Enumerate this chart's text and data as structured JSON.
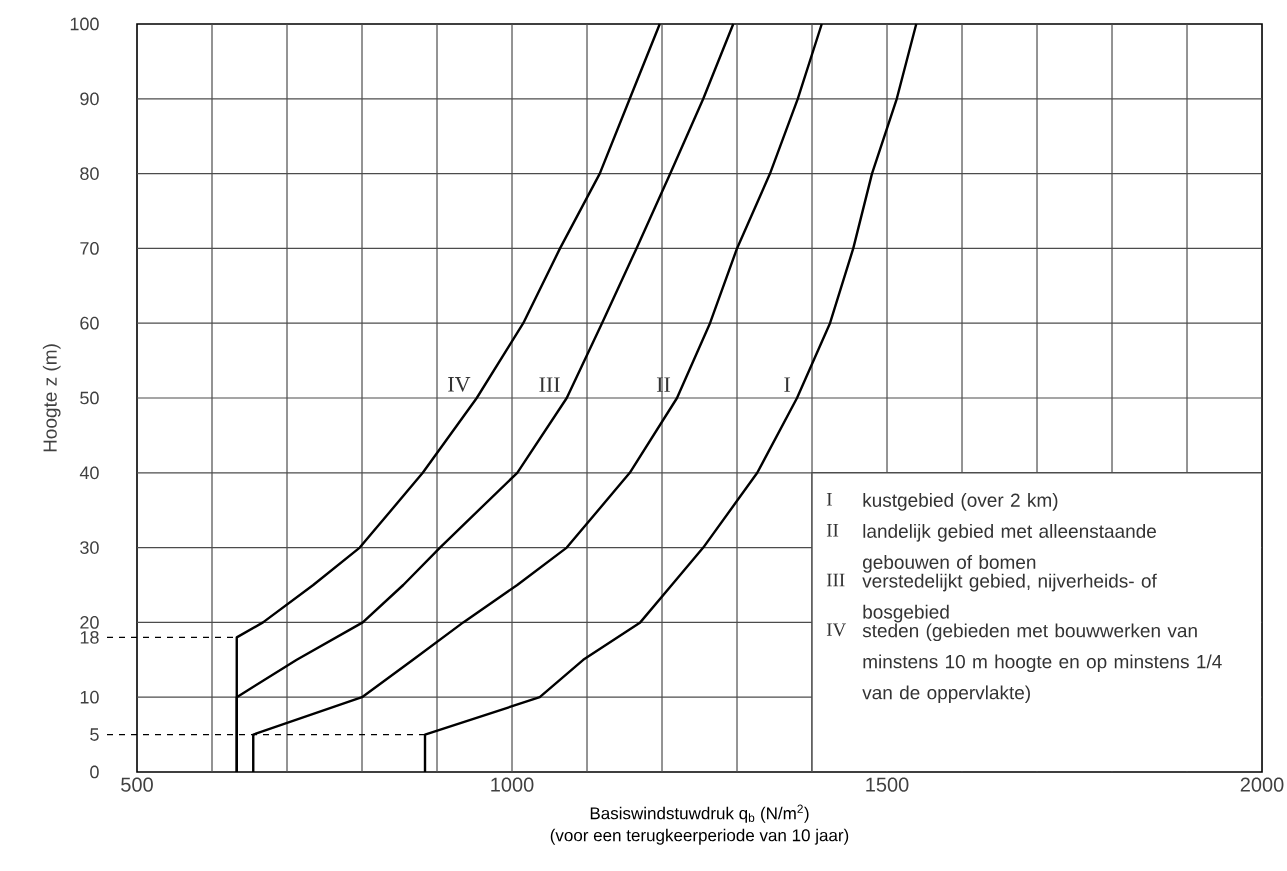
{
  "chart_data": {
    "type": "line",
    "xlabel": "Basiswindstuwdruk q$_{b}$ (N/m$^{2}$)",
    "ylabel": "Hoogte z (m)",
    "xlim": [
      500,
      2000
    ],
    "ylim": [
      0,
      100
    ],
    "xticks": [
      500,
      {
        "value": 600,
        "label": null
      },
      {
        "value": 700,
        "label": null
      },
      {
        "value": 800,
        "label": null
      },
      {
        "value": 900,
        "label": null
      },
      1000,
      {
        "value": 1100,
        "label": null
      },
      {
        "value": 1200,
        "label": null
      },
      {
        "value": 1300,
        "label": null
      },
      {
        "value": 1400,
        "label": null
      },
      1500,
      {
        "value": 1600,
        "label": null
      },
      {
        "value": 1700,
        "label": null
      },
      {
        "value": 1800,
        "label": null
      },
      {
        "value": 1900,
        "label": null
      },
      2000
    ],
    "yticks": [
      0,
      5,
      10,
      18,
      20,
      30,
      40,
      50,
      60,
      70,
      80,
      90,
      100
    ],
    "grid": true,
    "marker": "none",
    "line_style": "solid",
    "series": [
      {
        "name": "IV",
        "color": "#000000",
        "x": [
          633,
          633,
          668,
          735,
          797,
          881,
          953,
          1015,
          1064,
          1117,
          1157,
          1197
        ],
        "values": [
          0,
          18,
          20,
          25,
          30,
          40,
          50,
          60,
          70,
          80,
          90,
          100
        ]
      },
      {
        "name": "III",
        "color": "#000000",
        "x": [
          633,
          633,
          713,
          801,
          855,
          904,
          1007,
          1073,
          1120,
          1166,
          1211,
          1255,
          1295
        ],
        "values": [
          0,
          10,
          15,
          20,
          25,
          30,
          40,
          50,
          60,
          70,
          80,
          90,
          100
        ]
      },
      {
        "name": "II",
        "color": "#000000",
        "x": [
          655,
          655,
          800,
          868,
          935,
          1007,
          1073,
          1157,
          1220,
          1264,
          1300,
          1344,
          1381,
          1413
        ],
        "values": [
          0,
          5,
          10,
          15,
          20,
          25,
          30,
          40,
          50,
          60,
          70,
          80,
          90,
          100
        ]
      },
      {
        "name": "I",
        "color": "#000000",
        "x": [
          884,
          884,
          1037,
          1095,
          1171,
          1213,
          1255,
          1327,
          1380,
          1424,
          1455,
          1480,
          1513,
          1539
        ],
        "values": [
          0,
          5,
          10,
          15,
          20,
          25,
          30,
          40,
          50,
          60,
          70,
          80,
          90,
          100
        ]
      }
    ],
    "ref_lines": [
      {
        "axis": "y",
        "value": 18,
        "line_style": "dashed"
      },
      {
        "axis": "y",
        "value": 5,
        "line_style": "dashed"
      }
    ],
    "annotations": [
      "steden (gebieden met bouwwerken van minstens 10 m hoogte en op minstens 1/4 van de oppervlakte)",
      "verstedelijkt gebied, nijverheids- of bosgebied",
      "landelijk gebied met alleenstaande gebouwen of bomen",
      "kustgebied (over 2 km)",
      "(voor een terugkeerperiode van 10 jaar)"
    ]
  }
}
